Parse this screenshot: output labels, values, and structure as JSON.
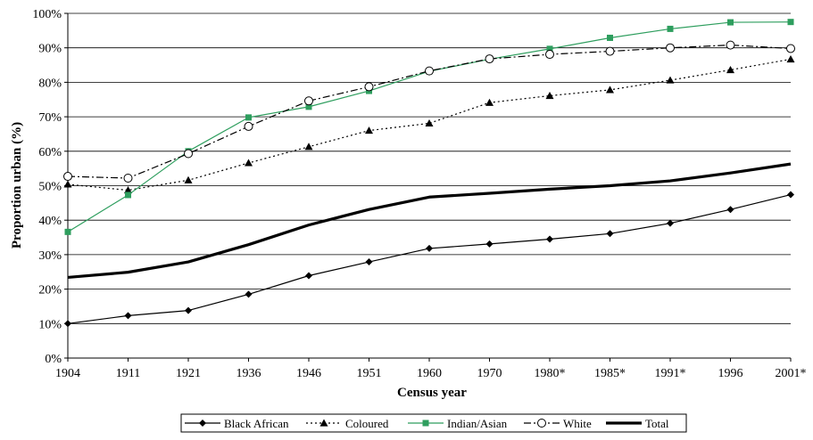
{
  "chart_data": {
    "type": "line",
    "title": "",
    "xlabel": "Census year",
    "ylabel": "Proportion urban (%)",
    "x": [
      "1904",
      "1911",
      "1921",
      "1936",
      "1946",
      "1951",
      "1960",
      "1970",
      "1980*",
      "1985*",
      "1991*",
      "1996",
      "2001*"
    ],
    "y_ticks": [
      "0%",
      "10%",
      "20%",
      "30%",
      "40%",
      "50%",
      "60%",
      "70%",
      "80%",
      "90%",
      "100%"
    ],
    "ylim": [
      0,
      100
    ],
    "grid": "horizontal",
    "legend_position": "bottom",
    "series": [
      {
        "name": "Black African",
        "color": "#000000",
        "marker": "diamond",
        "line": "solid",
        "width": 1.2,
        "values": [
          10,
          12.3,
          13.8,
          18.5,
          23.9,
          27.9,
          31.8,
          33.1,
          34.5,
          36.1,
          39.1,
          43.1,
          47.4
        ]
      },
      {
        "name": "Coloured",
        "color": "#000000",
        "marker": "triangle",
        "line": "dotted",
        "width": 1.2,
        "values": [
          50.4,
          48.7,
          51.6,
          56.6,
          61.3,
          66.0,
          68.1,
          74.1,
          76.1,
          77.8,
          80.6,
          83.6,
          86.7
        ]
      },
      {
        "name": "Indian/Asian",
        "color": "#2e9e5e",
        "marker": "square",
        "line": "solid",
        "width": 1.2,
        "values": [
          36.6,
          47.3,
          60.0,
          69.8,
          72.9,
          77.5,
          83.2,
          86.7,
          89.7,
          92.9,
          95.5,
          97.4,
          97.5
        ]
      },
      {
        "name": "White",
        "color": "#000000",
        "marker": "circle",
        "line": "dashdot",
        "width": 1.2,
        "values": [
          52.7,
          52.2,
          59.3,
          67.2,
          74.6,
          78.7,
          83.3,
          86.8,
          88.1,
          89.0,
          90.0,
          90.8,
          89.8
        ]
      },
      {
        "name": "Total",
        "color": "#000000",
        "marker": "none",
        "line": "solid",
        "width": 3.2,
        "values": [
          23.4,
          24.9,
          27.9,
          32.9,
          38.6,
          43.1,
          46.7,
          47.8,
          49.0,
          50.0,
          51.4,
          53.7,
          56.3
        ]
      }
    ]
  }
}
